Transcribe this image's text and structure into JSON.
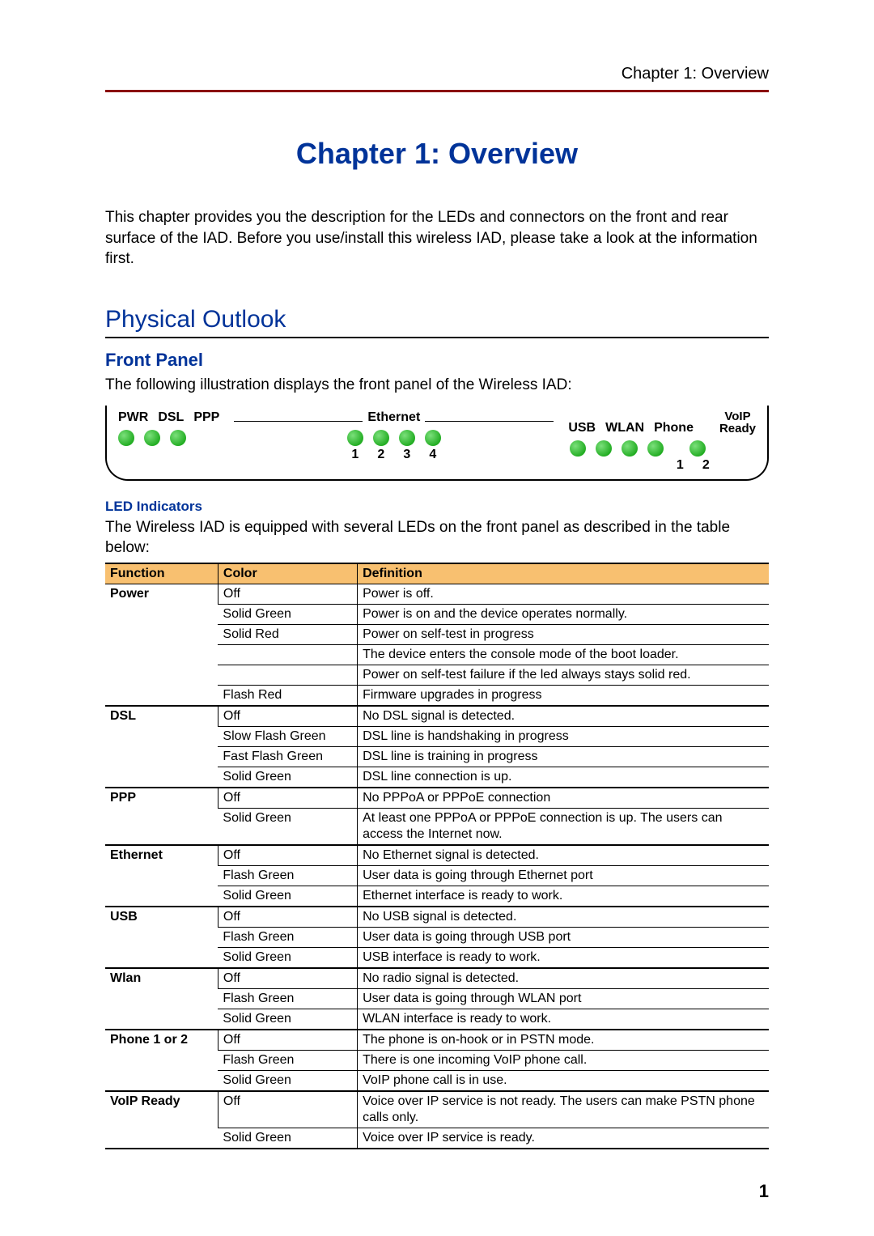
{
  "header": {
    "text": "Chapter 1: Overview"
  },
  "chapter": {
    "title": "Chapter 1: Overview"
  },
  "intro": "This chapter provides you the description for the LEDs and connectors on the front and rear surface of the IAD. Before you use/install this wireless IAD, please take a look at the information first.",
  "section": {
    "title": "Physical Outlook"
  },
  "frontpanel": {
    "title": "Front Panel",
    "caption": "The following illustration displays the front panel of the Wireless IAD:"
  },
  "panel": {
    "labels": {
      "pwr": "PWR",
      "dsl": "DSL",
      "ppp": "PPP",
      "ethernet": "Ethernet",
      "usb": "USB",
      "wlan": "WLAN",
      "phone": "Phone",
      "voip1": "VoIP",
      "voip2": "Ready",
      "n1": "1",
      "n2": "2",
      "n3": "3",
      "n4": "4",
      "p1": "1",
      "p2": "2"
    },
    "led_color": "#009900"
  },
  "ledsection": {
    "title": "LED Indicators",
    "desc": "The Wireless IAD is equipped with several LEDs on the front panel as described in the table below:"
  },
  "table": {
    "header_bg": "#f8c070",
    "columns": {
      "c1": "Function",
      "c2": "Color",
      "c3": "Definition"
    },
    "groups": [
      {
        "name": "Power",
        "rows": [
          {
            "color": "Off",
            "def": "Power is off."
          },
          {
            "color": "Solid Green",
            "def": "Power is on and the device operates normally."
          },
          {
            "color": "Solid Red",
            "def": "Power on self-test in progress"
          },
          {
            "color": "",
            "def": "The device enters the console mode of the boot loader."
          },
          {
            "color": "",
            "def": "Power on self-test failure if the led always stays solid red."
          },
          {
            "color": "Flash Red",
            "def": "Firmware upgrades in progress"
          }
        ]
      },
      {
        "name": "DSL",
        "rows": [
          {
            "color": "Off",
            "def": "No DSL signal is detected."
          },
          {
            "color": "Slow Flash Green",
            "def": "DSL line is handshaking in progress"
          },
          {
            "color": "Fast Flash Green",
            "def": "DSL line is training in progress"
          },
          {
            "color": "Solid Green",
            "def": "DSL line connection is up."
          }
        ]
      },
      {
        "name": "PPP",
        "rows": [
          {
            "color": "Off",
            "def": "No PPPoA or PPPoE connection"
          },
          {
            "color": "Solid Green",
            "def": "At least one PPPoA or PPPoE connection is up. The users can access the Internet now."
          }
        ]
      },
      {
        "name": "Ethernet",
        "rows": [
          {
            "color": "Off",
            "def": "No Ethernet signal is detected."
          },
          {
            "color": "Flash Green",
            "def": "User data is going through Ethernet port"
          },
          {
            "color": "Solid Green",
            "def": "Ethernet interface is ready to work."
          }
        ]
      },
      {
        "name": "USB",
        "rows": [
          {
            "color": "Off",
            "def": "No USB signal is detected."
          },
          {
            "color": "Flash Green",
            "def": "User data is going through USB port"
          },
          {
            "color": "Solid Green",
            "def": "USB interface is ready to work."
          }
        ]
      },
      {
        "name": "Wlan",
        "rows": [
          {
            "color": "Off",
            "def": "No radio signal is detected."
          },
          {
            "color": "Flash Green",
            "def": "User data is going through WLAN port"
          },
          {
            "color": "Solid Green",
            "def": "WLAN interface is ready to work."
          }
        ]
      },
      {
        "name": "Phone 1 or 2",
        "rows": [
          {
            "color": "Off",
            "def": "The phone is on-hook or in PSTN mode."
          },
          {
            "color": "Flash Green",
            "def": "There is one incoming VoIP phone call."
          },
          {
            "color": "Solid Green",
            "def": "VoIP phone call is in use."
          }
        ]
      },
      {
        "name": "VoIP Ready",
        "rows": [
          {
            "color": "Off",
            "def": "Voice over IP service is not ready. The users can make PSTN phone calls only."
          },
          {
            "color": "Solid Green",
            "def": "Voice over IP service is ready."
          }
        ]
      }
    ]
  },
  "page_number": "1"
}
